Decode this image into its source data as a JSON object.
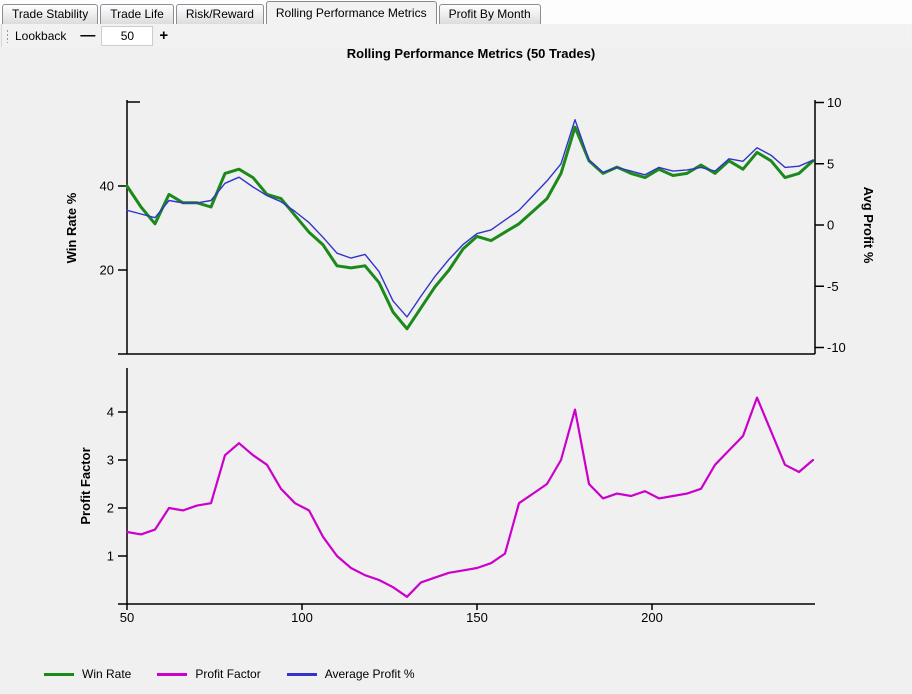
{
  "tabs": [
    {
      "label": "Trade Stability",
      "active": false
    },
    {
      "label": "Trade Life",
      "active": false
    },
    {
      "label": "Risk/Reward",
      "active": false
    },
    {
      "label": "Rolling Performance Metrics",
      "active": true
    },
    {
      "label": "Profit By Month",
      "active": false
    }
  ],
  "toolbar": {
    "lookback_label": "Lookback",
    "decrease_label": "—",
    "value": "50",
    "increase_label": "+"
  },
  "title": "Rolling Performance Metrics (50 Trades)",
  "legend": {
    "items": [
      {
        "label": "Win Rate",
        "color": "#1b8a1b"
      },
      {
        "label": "Profit Factor",
        "color": "#cc00cc"
      },
      {
        "label": "Average Profit %",
        "color": "#3333cc"
      }
    ]
  },
  "colors": {
    "win_rate": "#1b8a1b",
    "profit_factor": "#cc00cc",
    "avg_profit": "#3333cc",
    "axis": "#000000",
    "background": "#f0f0f0"
  },
  "chart_data": [
    {
      "type": "line",
      "title": "Rolling Performance Metrics (50 Trades)",
      "grid": false,
      "x": {
        "ticks": [
          50,
          100,
          150,
          200
        ],
        "range": [
          50,
          246
        ],
        "show_tick_labels": false,
        "values": [
          50,
          54,
          58,
          62,
          66,
          70,
          74,
          78,
          82,
          86,
          90,
          94,
          98,
          102,
          106,
          110,
          114,
          118,
          122,
          126,
          130,
          134,
          138,
          142,
          146,
          150,
          154,
          158,
          162,
          166,
          170,
          174,
          178,
          182,
          186,
          190,
          194,
          198,
          202,
          206,
          210,
          214,
          218,
          222,
          226,
          230,
          234,
          238,
          242,
          246
        ]
      },
      "y_left": {
        "label": "Win Rate %",
        "ticks": [
          20,
          40
        ],
        "range": [
          0,
          60
        ],
        "unlabeled_top_tick": 60
      },
      "y_right": {
        "label": "Avg Profit %",
        "ticks": [
          -10,
          -5,
          0,
          5,
          10
        ],
        "range": [
          -10,
          10
        ]
      },
      "series": [
        {
          "name": "Win Rate",
          "axis": "left",
          "color": "#1b8a1b",
          "width": 3,
          "values": [
            40,
            35,
            31,
            38,
            36,
            36,
            35,
            43,
            44,
            42,
            38,
            37,
            33,
            29,
            26,
            21,
            20.5,
            21,
            17,
            10,
            6,
            11,
            16,
            20,
            25,
            28,
            27,
            29,
            31,
            34,
            37,
            43,
            54,
            46,
            43,
            44.5,
            43,
            42,
            44,
            42.5,
            43,
            45,
            43,
            46,
            44,
            48,
            46,
            42,
            43,
            46
          ]
        },
        {
          "name": "Average Profit %",
          "axis": "right",
          "color": "#3333cc",
          "width": 1.4,
          "values": [
            1.2,
            0.9,
            0.6,
            2.0,
            1.8,
            1.8,
            2.0,
            3.4,
            3.9,
            3.1,
            2.4,
            1.9,
            1.1,
            0.2,
            -1.0,
            -2.3,
            -2.7,
            -2.4,
            -3.8,
            -6.2,
            -7.5,
            -5.8,
            -4.2,
            -2.8,
            -1.6,
            -0.7,
            -0.4,
            0.4,
            1.2,
            2.4,
            3.6,
            5.0,
            8.6,
            5.3,
            4.3,
            4.7,
            4.4,
            4.1,
            4.7,
            4.4,
            4.5,
            4.7,
            4.4,
            5.4,
            5.2,
            6.3,
            5.7,
            4.7,
            4.8,
            5.3
          ]
        }
      ]
    },
    {
      "type": "line",
      "title": "",
      "grid": false,
      "x": {
        "ticks": [
          50,
          100,
          150,
          200
        ],
        "range": [
          50,
          246
        ],
        "show_tick_labels": true,
        "values": [
          50,
          54,
          58,
          62,
          66,
          70,
          74,
          78,
          82,
          86,
          90,
          94,
          98,
          102,
          106,
          110,
          114,
          118,
          122,
          126,
          130,
          134,
          138,
          142,
          146,
          150,
          154,
          158,
          162,
          166,
          170,
          174,
          178,
          182,
          186,
          190,
          194,
          198,
          202,
          206,
          210,
          214,
          218,
          222,
          226,
          230,
          234,
          238,
          242,
          246
        ]
      },
      "y_left": {
        "label": "Profit Factor",
        "ticks": [
          1,
          2,
          3,
          4
        ],
        "range": [
          0,
          4.9
        ]
      },
      "series": [
        {
          "name": "Profit Factor",
          "axis": "left",
          "color": "#cc00cc",
          "width": 2.2,
          "values": [
            1.5,
            1.45,
            1.55,
            2.0,
            1.95,
            2.05,
            2.1,
            3.1,
            3.35,
            3.1,
            2.9,
            2.4,
            2.1,
            1.95,
            1.4,
            1.0,
            0.75,
            0.6,
            0.5,
            0.35,
            0.15,
            0.45,
            0.55,
            0.65,
            0.7,
            0.75,
            0.85,
            1.05,
            2.1,
            2.3,
            2.5,
            3.0,
            4.05,
            2.5,
            2.2,
            2.3,
            2.25,
            2.35,
            2.2,
            2.25,
            2.3,
            2.4,
            2.9,
            3.2,
            3.5,
            4.3,
            3.6,
            2.9,
            2.75,
            3.0
          ]
        }
      ]
    }
  ]
}
